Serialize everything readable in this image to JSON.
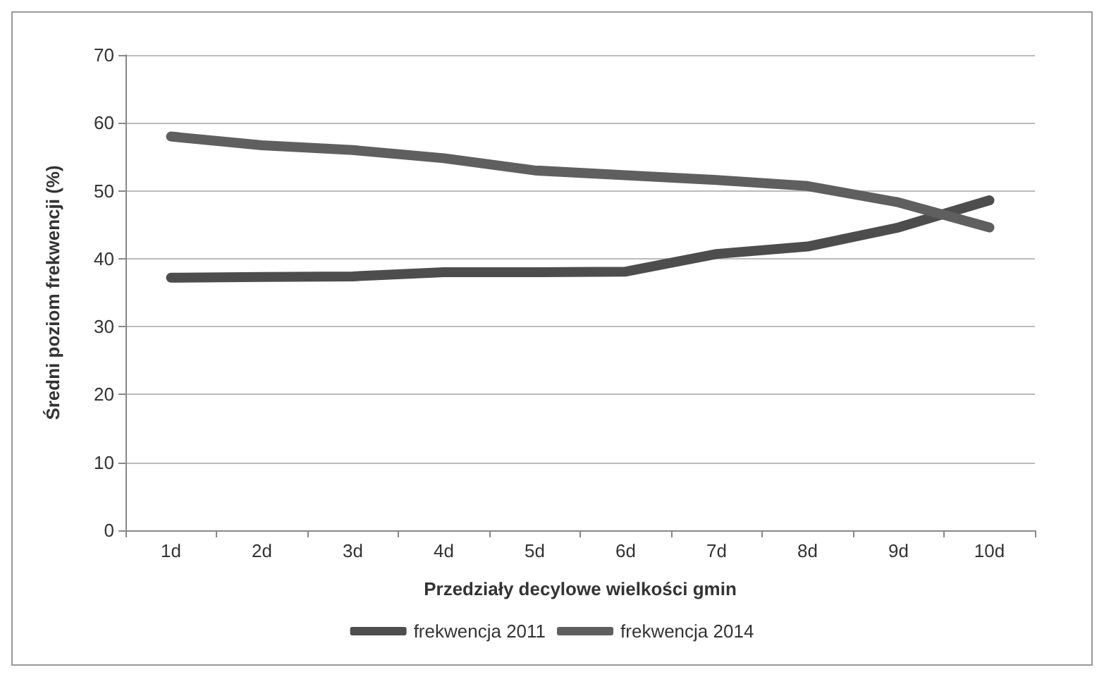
{
  "chart_data": {
    "type": "line",
    "xlabel": "Przedziały decylowe wielkości gmin",
    "ylabel": "Średni poziom frekwencji (%)",
    "categories": [
      "1d",
      "2d",
      "3d",
      "4d",
      "5d",
      "6d",
      "7d",
      "8d",
      "9d",
      "10d"
    ],
    "series": [
      {
        "name": "frekwencja 2011",
        "color": "#4d4d4d",
        "values": [
          37.2,
          37.3,
          37.4,
          38.0,
          38.0,
          38.1,
          40.7,
          41.8,
          44.6,
          48.6
        ]
      },
      {
        "name": "frekwencja 2014",
        "color": "#5f5f5f",
        "values": [
          58.0,
          56.7,
          56.0,
          54.8,
          53.0,
          52.3,
          51.6,
          50.7,
          48.3,
          44.6
        ]
      }
    ],
    "ylim": [
      0,
      70
    ],
    "yticks": [
      0,
      10,
      20,
      30,
      40,
      50,
      60,
      70
    ],
    "grid": "y",
    "legend": "bottom",
    "line_style": "solid"
  }
}
